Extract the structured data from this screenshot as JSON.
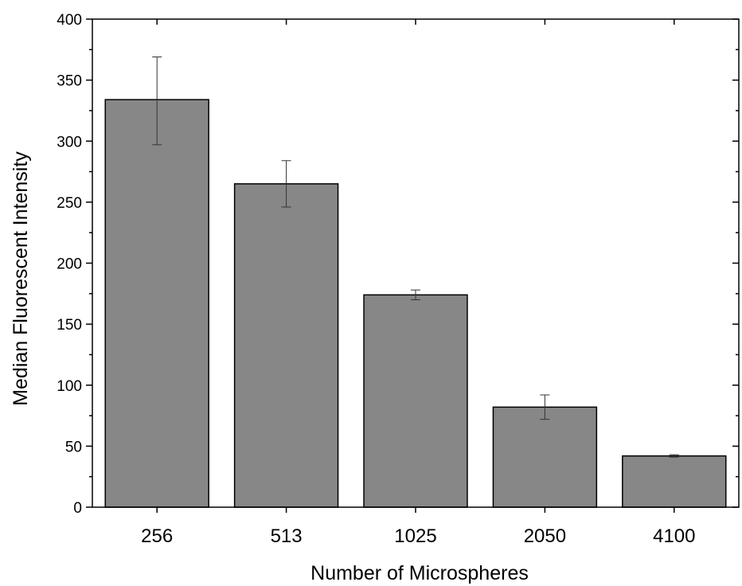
{
  "chart_data": {
    "type": "bar",
    "title": "",
    "xlabel": "Number of Microspheres",
    "ylabel": "Median Fluorescent Intensity",
    "categories": [
      "256",
      "513",
      "1025",
      "2050",
      "4100"
    ],
    "values": [
      334,
      265,
      174,
      82,
      42
    ],
    "error": [
      [
        297,
        369
      ],
      [
        246,
        284
      ],
      [
        170,
        178
      ],
      [
        72,
        92
      ],
      [
        41,
        43
      ]
    ],
    "ylim": [
      0,
      400
    ],
    "yticks": [
      0,
      50,
      100,
      150,
      200,
      250,
      300,
      350,
      400
    ],
    "grid": false,
    "legend": "none",
    "bar_color": "#878787",
    "bar_edge_color": "#000000"
  }
}
